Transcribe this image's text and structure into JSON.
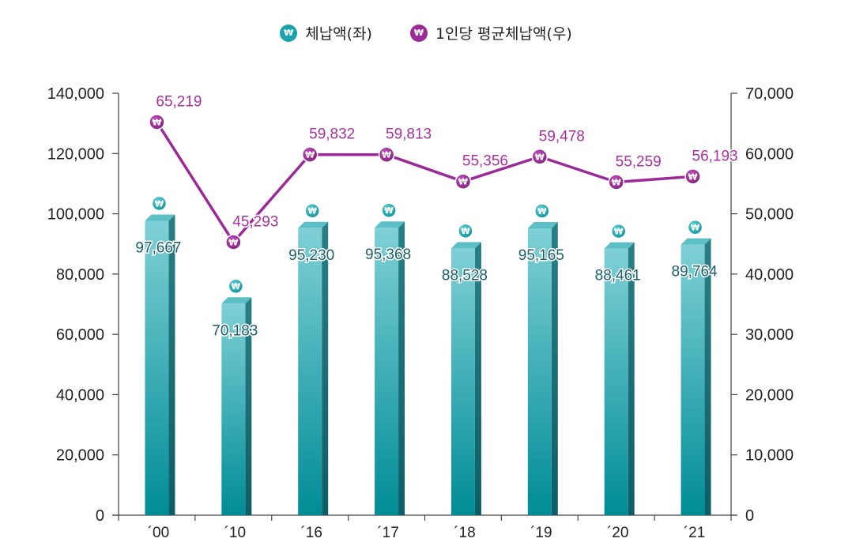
{
  "chart_data": {
    "type": "bar",
    "categories": [
      "´00",
      "´10",
      "´16",
      "´17",
      "´18",
      "´19",
      "´20",
      "´21"
    ],
    "series": [
      {
        "name": "체납액(좌)",
        "type": "bar",
        "axis": "left",
        "values": [
          97667,
          70183,
          95230,
          95368,
          88528,
          95165,
          88461,
          89764
        ],
        "labels": [
          "97,667",
          "70,183",
          "95,230",
          "95,368",
          "88,528",
          "95,165",
          "88,461",
          "89,764"
        ]
      },
      {
        "name": "1인당 평균체납액(우)",
        "type": "line",
        "axis": "right",
        "values": [
          65219,
          45293,
          59832,
          59813,
          55356,
          59478,
          55259,
          56193
        ],
        "labels": [
          "65,219",
          "45,293",
          "59,832",
          "59,813",
          "55,356",
          "59,478",
          "55,259",
          "56,193"
        ]
      }
    ],
    "y_left": {
      "min": 0,
      "max": 140000,
      "ticks": [
        "0",
        "20,000",
        "40,000",
        "60,000",
        "80,000",
        "100,000",
        "120,000",
        "140,000"
      ]
    },
    "y_right": {
      "min": 0,
      "max": 70000,
      "ticks": [
        "0",
        "10,000",
        "20,000",
        "30,000",
        "40,000",
        "50,000",
        "60,000",
        "70,000"
      ]
    },
    "legend_position": "top-center",
    "marker_symbol": "₩",
    "colors": {
      "bar": "#1aa3ad",
      "bar_label": "#1a5f6a",
      "line": "#9b2a98",
      "line_label": "#a8329f",
      "axis": "#444444"
    }
  }
}
